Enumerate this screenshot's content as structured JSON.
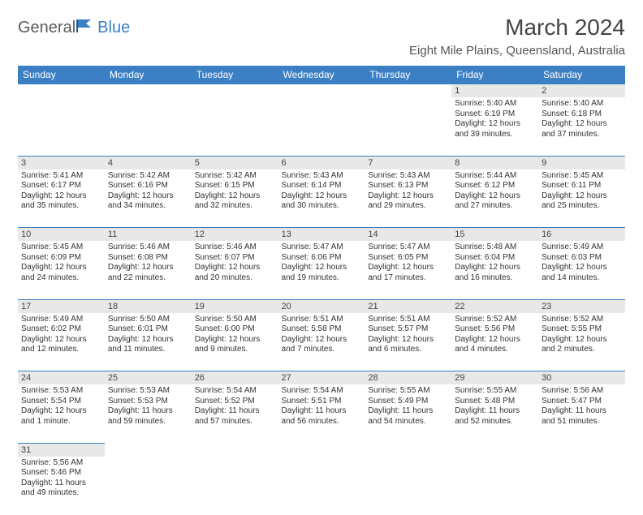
{
  "logo": {
    "text1": "General",
    "text2": "Blue"
  },
  "title": "March 2024",
  "location": "Eight Mile Plains, Queensland, Australia",
  "colors": {
    "header_bg": "#3b7fc4",
    "header_text": "#ffffff",
    "daynum_bg": "#e8e8e8",
    "border": "#3b7fc4",
    "text": "#333333",
    "logo_gray": "#5a5a5a",
    "logo_blue": "#3b7fc4"
  },
  "dayHeaders": [
    "Sunday",
    "Monday",
    "Tuesday",
    "Wednesday",
    "Thursday",
    "Friday",
    "Saturday"
  ],
  "weeks": [
    [
      null,
      null,
      null,
      null,
      null,
      {
        "n": "1",
        "l": [
          "Sunrise: 5:40 AM",
          "Sunset: 6:19 PM",
          "Daylight: 12 hours",
          "and 39 minutes."
        ]
      },
      {
        "n": "2",
        "l": [
          "Sunrise: 5:40 AM",
          "Sunset: 6:18 PM",
          "Daylight: 12 hours",
          "and 37 minutes."
        ]
      }
    ],
    [
      {
        "n": "3",
        "l": [
          "Sunrise: 5:41 AM",
          "Sunset: 6:17 PM",
          "Daylight: 12 hours",
          "and 35 minutes."
        ]
      },
      {
        "n": "4",
        "l": [
          "Sunrise: 5:42 AM",
          "Sunset: 6:16 PM",
          "Daylight: 12 hours",
          "and 34 minutes."
        ]
      },
      {
        "n": "5",
        "l": [
          "Sunrise: 5:42 AM",
          "Sunset: 6:15 PM",
          "Daylight: 12 hours",
          "and 32 minutes."
        ]
      },
      {
        "n": "6",
        "l": [
          "Sunrise: 5:43 AM",
          "Sunset: 6:14 PM",
          "Daylight: 12 hours",
          "and 30 minutes."
        ]
      },
      {
        "n": "7",
        "l": [
          "Sunrise: 5:43 AM",
          "Sunset: 6:13 PM",
          "Daylight: 12 hours",
          "and 29 minutes."
        ]
      },
      {
        "n": "8",
        "l": [
          "Sunrise: 5:44 AM",
          "Sunset: 6:12 PM",
          "Daylight: 12 hours",
          "and 27 minutes."
        ]
      },
      {
        "n": "9",
        "l": [
          "Sunrise: 5:45 AM",
          "Sunset: 6:11 PM",
          "Daylight: 12 hours",
          "and 25 minutes."
        ]
      }
    ],
    [
      {
        "n": "10",
        "l": [
          "Sunrise: 5:45 AM",
          "Sunset: 6:09 PM",
          "Daylight: 12 hours",
          "and 24 minutes."
        ]
      },
      {
        "n": "11",
        "l": [
          "Sunrise: 5:46 AM",
          "Sunset: 6:08 PM",
          "Daylight: 12 hours",
          "and 22 minutes."
        ]
      },
      {
        "n": "12",
        "l": [
          "Sunrise: 5:46 AM",
          "Sunset: 6:07 PM",
          "Daylight: 12 hours",
          "and 20 minutes."
        ]
      },
      {
        "n": "13",
        "l": [
          "Sunrise: 5:47 AM",
          "Sunset: 6:06 PM",
          "Daylight: 12 hours",
          "and 19 minutes."
        ]
      },
      {
        "n": "14",
        "l": [
          "Sunrise: 5:47 AM",
          "Sunset: 6:05 PM",
          "Daylight: 12 hours",
          "and 17 minutes."
        ]
      },
      {
        "n": "15",
        "l": [
          "Sunrise: 5:48 AM",
          "Sunset: 6:04 PM",
          "Daylight: 12 hours",
          "and 16 minutes."
        ]
      },
      {
        "n": "16",
        "l": [
          "Sunrise: 5:49 AM",
          "Sunset: 6:03 PM",
          "Daylight: 12 hours",
          "and 14 minutes."
        ]
      }
    ],
    [
      {
        "n": "17",
        "l": [
          "Sunrise: 5:49 AM",
          "Sunset: 6:02 PM",
          "Daylight: 12 hours",
          "and 12 minutes."
        ]
      },
      {
        "n": "18",
        "l": [
          "Sunrise: 5:50 AM",
          "Sunset: 6:01 PM",
          "Daylight: 12 hours",
          "and 11 minutes."
        ]
      },
      {
        "n": "19",
        "l": [
          "Sunrise: 5:50 AM",
          "Sunset: 6:00 PM",
          "Daylight: 12 hours",
          "and 9 minutes."
        ]
      },
      {
        "n": "20",
        "l": [
          "Sunrise: 5:51 AM",
          "Sunset: 5:58 PM",
          "Daylight: 12 hours",
          "and 7 minutes."
        ]
      },
      {
        "n": "21",
        "l": [
          "Sunrise: 5:51 AM",
          "Sunset: 5:57 PM",
          "Daylight: 12 hours",
          "and 6 minutes."
        ]
      },
      {
        "n": "22",
        "l": [
          "Sunrise: 5:52 AM",
          "Sunset: 5:56 PM",
          "Daylight: 12 hours",
          "and 4 minutes."
        ]
      },
      {
        "n": "23",
        "l": [
          "Sunrise: 5:52 AM",
          "Sunset: 5:55 PM",
          "Daylight: 12 hours",
          "and 2 minutes."
        ]
      }
    ],
    [
      {
        "n": "24",
        "l": [
          "Sunrise: 5:53 AM",
          "Sunset: 5:54 PM",
          "Daylight: 12 hours",
          "and 1 minute."
        ]
      },
      {
        "n": "25",
        "l": [
          "Sunrise: 5:53 AM",
          "Sunset: 5:53 PM",
          "Daylight: 11 hours",
          "and 59 minutes."
        ]
      },
      {
        "n": "26",
        "l": [
          "Sunrise: 5:54 AM",
          "Sunset: 5:52 PM",
          "Daylight: 11 hours",
          "and 57 minutes."
        ]
      },
      {
        "n": "27",
        "l": [
          "Sunrise: 5:54 AM",
          "Sunset: 5:51 PM",
          "Daylight: 11 hours",
          "and 56 minutes."
        ]
      },
      {
        "n": "28",
        "l": [
          "Sunrise: 5:55 AM",
          "Sunset: 5:49 PM",
          "Daylight: 11 hours",
          "and 54 minutes."
        ]
      },
      {
        "n": "29",
        "l": [
          "Sunrise: 5:55 AM",
          "Sunset: 5:48 PM",
          "Daylight: 11 hours",
          "and 52 minutes."
        ]
      },
      {
        "n": "30",
        "l": [
          "Sunrise: 5:56 AM",
          "Sunset: 5:47 PM",
          "Daylight: 11 hours",
          "and 51 minutes."
        ]
      }
    ],
    [
      {
        "n": "31",
        "l": [
          "Sunrise: 5:56 AM",
          "Sunset: 5:46 PM",
          "Daylight: 11 hours",
          "and 49 minutes."
        ]
      },
      null,
      null,
      null,
      null,
      null,
      null
    ]
  ]
}
